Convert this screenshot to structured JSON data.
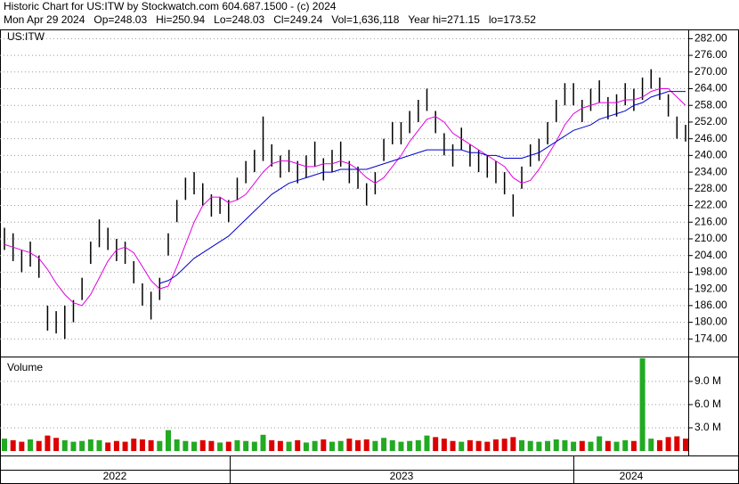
{
  "chart_data": {
    "type": "stock",
    "title": "Historic Chart for US:ITW by Stockwatch.com 604.687.1500 - (c) 2024",
    "subtitle": "Mon Apr 29 2024   Op=248.03   Hi=250.94   Lo=248.03   Cl=249.24   Vol=1,636,118   Year hi=271.15   lo=173.52",
    "symbol": "US:ITW",
    "volume_label": "Volume",
    "period_labels": [
      "2022",
      "2023",
      "2024"
    ],
    "high": [
      214,
      212,
      206,
      209,
      204,
      186,
      184,
      186,
      188,
      196,
      209,
      217,
      214,
      210,
      209,
      202,
      194,
      191,
      196,
      212,
      224,
      232,
      234,
      230,
      226,
      225,
      224,
      232,
      238,
      242,
      254,
      244,
      240,
      242,
      238,
      240,
      245,
      239,
      242,
      245,
      238,
      236,
      230,
      234,
      246,
      252,
      252,
      256,
      260,
      264,
      256,
      248,
      244,
      250,
      244,
      242,
      240,
      238,
      234,
      226,
      236,
      244,
      246,
      252,
      260,
      266,
      266,
      260,
      264,
      267,
      261,
      262,
      266,
      264,
      268,
      271,
      268,
      262,
      254,
      251
    ],
    "low": [
      206,
      202,
      198,
      200,
      196,
      177,
      176,
      174,
      180,
      188,
      201,
      207,
      206,
      202,
      201,
      194,
      186,
      181,
      188,
      204,
      216,
      224,
      226,
      222,
      218,
      219,
      216,
      224,
      230,
      234,
      238,
      236,
      232,
      234,
      230,
      232,
      236,
      231,
      234,
      236,
      230,
      228,
      222,
      226,
      238,
      244,
      244,
      248,
      252,
      256,
      248,
      240,
      236,
      242,
      236,
      234,
      232,
      230,
      226,
      218,
      228,
      236,
      238,
      244,
      252,
      258,
      258,
      252,
      256,
      259,
      253,
      254,
      258,
      256,
      260,
      264,
      260,
      254,
      246,
      245
    ],
    "ma_short": [
      208,
      207,
      206,
      205,
      203,
      199,
      194,
      190,
      187,
      186,
      190,
      196,
      202,
      206,
      207,
      205,
      200,
      195,
      192,
      193,
      200,
      208,
      216,
      222,
      225,
      225,
      223,
      224,
      226,
      230,
      234,
      237,
      238,
      238,
      237,
      236,
      236,
      237,
      237,
      238,
      237,
      235,
      232,
      230,
      232,
      236,
      240,
      245,
      249,
      253,
      254,
      252,
      248,
      246,
      244,
      242,
      240,
      238,
      236,
      232,
      230,
      231,
      235,
      240,
      245,
      251,
      255,
      257,
      258,
      259,
      259,
      259,
      260,
      260,
      261,
      263,
      264,
      264,
      261,
      258
    ],
    "ma_long": [
      null,
      null,
      null,
      null,
      null,
      null,
      null,
      null,
      null,
      null,
      null,
      null,
      null,
      null,
      null,
      null,
      null,
      null,
      194,
      195,
      197,
      200,
      203,
      205,
      207,
      209,
      211,
      214,
      217,
      220,
      223,
      226,
      228,
      230,
      231,
      232,
      233,
      234,
      234,
      235,
      235,
      235,
      235,
      236,
      237,
      238,
      239,
      240,
      241,
      242,
      242,
      242,
      242,
      242,
      241,
      241,
      240,
      240,
      239,
      239,
      239,
      240,
      241,
      243,
      245,
      247,
      249,
      250,
      251,
      253,
      254,
      255,
      256,
      258,
      259,
      261,
      262,
      263,
      263,
      263
    ],
    "volume": [
      1.6,
      1.4,
      1.2,
      1.5,
      1.3,
      2.0,
      1.7,
      1.4,
      1.2,
      1.3,
      1.5,
      1.4,
      1.1,
      1.3,
      1.2,
      1.6,
      1.5,
      1.4,
      1.3,
      2.7,
      1.5,
      1.3,
      1.2,
      1.4,
      1.3,
      1.1,
      1.2,
      1.4,
      1.3,
      1.2,
      2.1,
      1.4,
      1.3,
      1.2,
      1.4,
      1.1,
      1.3,
      1.5,
      1.2,
      1.3,
      1.6,
      1.4,
      1.5,
      1.3,
      1.7,
      1.4,
      1.2,
      1.3,
      1.4,
      2.0,
      1.8,
      1.6,
      1.3,
      1.2,
      1.4,
      1.3,
      1.2,
      1.5,
      1.6,
      1.8,
      1.4,
      1.3,
      1.2,
      1.3,
      1.5,
      1.4,
      1.2,
      1.3,
      1.2,
      1.9,
      1.3,
      1.2,
      1.4,
      1.3,
      12.0,
      1.6,
      1.4,
      1.8,
      1.9,
      1.6
    ],
    "ma_short_color": "#e000e0",
    "ma_long_color": "#0000cc",
    "bar_color": "#000000",
    "up_color": "#22aa22",
    "down_color": "#dd0000",
    "ylim": [
      168,
      285
    ],
    "yticks": [
      {
        "value": 174,
        "label": "174.00"
      },
      {
        "value": 180,
        "label": "180.00"
      },
      {
        "value": 186,
        "label": "186.00"
      },
      {
        "value": 192,
        "label": "192.00"
      },
      {
        "value": 198,
        "label": "198.00"
      },
      {
        "value": 204,
        "label": "204.00"
      },
      {
        "value": 210,
        "label": "210.00"
      },
      {
        "value": 216,
        "label": "216.00"
      },
      {
        "value": 222,
        "label": "222.00"
      },
      {
        "value": 228,
        "label": "228.00"
      },
      {
        "value": 234,
        "label": "234.00"
      },
      {
        "value": 240,
        "label": "240.00"
      },
      {
        "value": 246,
        "label": "246.00"
      },
      {
        "value": 252,
        "label": "252.00"
      },
      {
        "value": 258,
        "label": "258.00"
      },
      {
        "value": 264,
        "label": "264.00"
      },
      {
        "value": 270,
        "label": "270.00"
      },
      {
        "value": 276,
        "label": "276.00"
      },
      {
        "value": 282,
        "label": "282.00"
      }
    ],
    "vlim": [
      0,
      12.1
    ],
    "vticks": [
      {
        "value": 3,
        "label": "3.0 M"
      },
      {
        "value": 6,
        "label": "6.0 M"
      },
      {
        "value": 9,
        "label": "9.0 M"
      }
    ],
    "grid": true
  }
}
